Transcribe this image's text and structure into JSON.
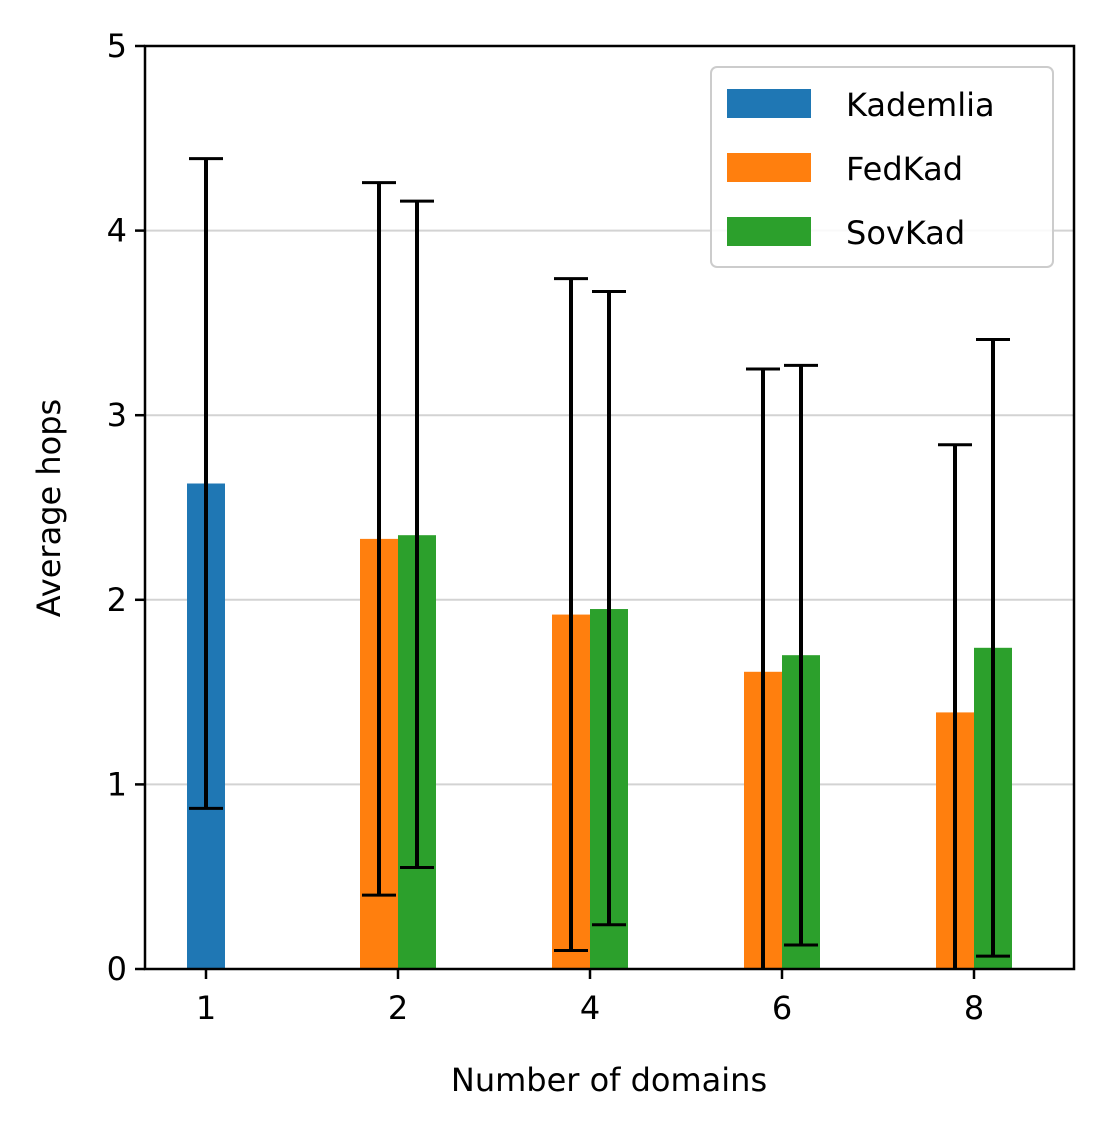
{
  "chart_data": {
    "type": "bar",
    "xlabel": "Number of domains",
    "ylabel": "Average hops",
    "ylim": [
      0,
      5
    ],
    "yticks": [
      0,
      1,
      2,
      3,
      4,
      5
    ],
    "categories": [
      "1",
      "2",
      "4",
      "6",
      "8"
    ],
    "grid": "horizontal",
    "legend_position": "top-right",
    "series": [
      {
        "name": "Kademlia",
        "color": "#1f77b4",
        "values": [
          2.63,
          null,
          null,
          null,
          null
        ],
        "err_low": [
          0.87,
          null,
          null,
          null,
          null
        ],
        "err_high": [
          4.39,
          null,
          null,
          null,
          null
        ]
      },
      {
        "name": "FedKad",
        "color": "#ff7f0e",
        "values": [
          null,
          2.33,
          1.92,
          1.61,
          1.39
        ],
        "err_low": [
          null,
          0.4,
          0.1,
          0.0,
          0.0
        ],
        "err_high": [
          null,
          4.26,
          3.74,
          3.25,
          2.84
        ]
      },
      {
        "name": "SovKad",
        "color": "#2ca02c",
        "values": [
          null,
          2.35,
          1.95,
          1.7,
          1.74
        ],
        "err_low": [
          null,
          0.55,
          0.24,
          0.13,
          0.07
        ],
        "err_high": [
          null,
          4.16,
          3.67,
          3.27,
          3.41
        ]
      }
    ]
  }
}
